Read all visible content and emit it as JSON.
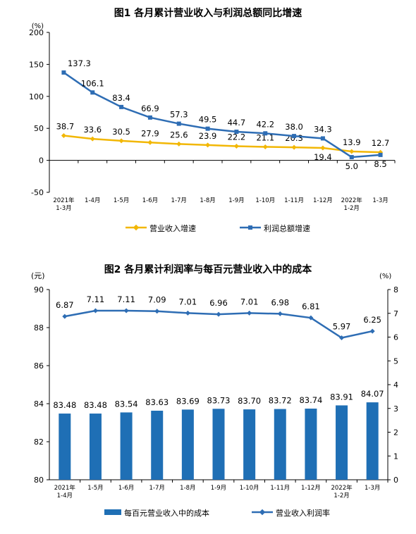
{
  "chart_data": [
    {
      "type": "line",
      "title": "图1  各月累计营业收入与利润总额同比增速",
      "unit": "(%)",
      "ylim": [
        -50,
        200
      ],
      "yticks": [
        "-50",
        "0",
        "50",
        "100",
        "150",
        "200"
      ],
      "categories": [
        [
          "2021年",
          "1-3月"
        ],
        [
          "1-4月"
        ],
        [
          "1-5月"
        ],
        [
          "1-6月"
        ],
        [
          "1-7月"
        ],
        [
          "1-8月"
        ],
        [
          "1-9月"
        ],
        [
          "1-10月"
        ],
        [
          "1-11月"
        ],
        [
          "1-12月"
        ],
        [
          "2022年",
          "1-2月"
        ],
        [
          "1-3月"
        ]
      ],
      "series": [
        {
          "name": "营业收入增速",
          "color": "#F2B705",
          "marker": "diamond",
          "values": [
            38.7,
            33.6,
            30.5,
            27.9,
            25.6,
            23.9,
            22.2,
            21.1,
            20.3,
            19.4,
            13.9,
            12.7
          ],
          "labels": [
            "38.7",
            "33.6",
            "30.5",
            "27.9",
            "25.6",
            "23.9",
            "22.2",
            "21.1",
            "20.3",
            "19.4",
            "13.9",
            "12.7"
          ]
        },
        {
          "name": "利润总额增速",
          "color": "#2E6DB4",
          "marker": "square",
          "values": [
            137.3,
            106.1,
            83.4,
            66.9,
            57.3,
            49.5,
            44.7,
            42.2,
            38.0,
            34.3,
            5.0,
            8.5
          ],
          "labels": [
            "137.3",
            "106.1",
            "83.4",
            "66.9",
            "57.3",
            "49.5",
            "44.7",
            "42.2",
            "38.0",
            "34.3",
            "5.0",
            "8.5"
          ]
        }
      ],
      "legend_position": "bottom",
      "grid": false
    },
    {
      "type": "bar+line",
      "title": "图2  各月累计利润率与每百元营业收入中的成本",
      "left_unit": "(元)",
      "right_unit": "(%)",
      "ylim_left": [
        80,
        90
      ],
      "ylim_right": [
        0,
        8
      ],
      "yticks_left": [
        "80",
        "82",
        "84",
        "86",
        "88",
        "90"
      ],
      "yticks_right": [
        "0",
        "1",
        "2",
        "3",
        "4",
        "5",
        "6",
        "7",
        "8"
      ],
      "categories": [
        [
          "2021年",
          "1-4月"
        ],
        [
          "1-5月"
        ],
        [
          "1-6月"
        ],
        [
          "1-7月"
        ],
        [
          "1-8月"
        ],
        [
          "1-9月"
        ],
        [
          "1-10月"
        ],
        [
          "1-11月"
        ],
        [
          "1-12月"
        ],
        [
          "2022年",
          "1-2月"
        ],
        [
          "1-3月"
        ]
      ],
      "bars": {
        "name": "每百元营业收入中的成本",
        "color": "#1F6FB5",
        "values": [
          83.48,
          83.48,
          83.54,
          83.63,
          83.69,
          83.73,
          83.7,
          83.72,
          83.74,
          83.91,
          84.07
        ],
        "labels": [
          "83.48",
          "83.48",
          "83.54",
          "83.63",
          "83.69",
          "83.73",
          "83.70",
          "83.72",
          "83.74",
          "83.91",
          "84.07"
        ]
      },
      "line": {
        "name": "营业收入利润率",
        "color": "#2E6DB4",
        "marker": "diamond",
        "values": [
          6.87,
          7.11,
          7.11,
          7.09,
          7.01,
          6.96,
          7.01,
          6.98,
          6.81,
          5.97,
          6.25
        ],
        "labels": [
          "6.87",
          "7.11",
          "7.11",
          "7.09",
          "7.01",
          "6.96",
          "7.01",
          "6.98",
          "6.81",
          "5.97",
          "6.25"
        ]
      },
      "legend_position": "bottom",
      "grid": false
    }
  ]
}
